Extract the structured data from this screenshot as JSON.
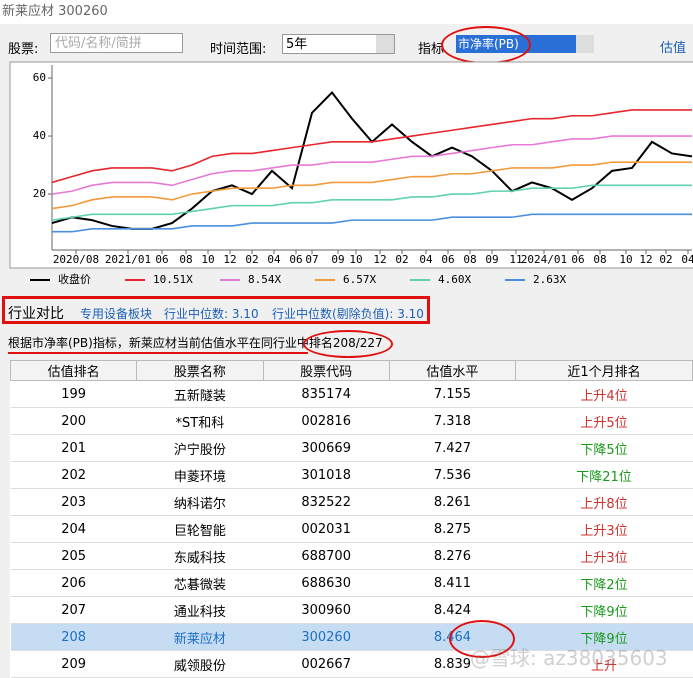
{
  "window_title": "新莱应材 300260",
  "controls": {
    "stock_label": "股票:",
    "stock_placeholder": "代码/名称/简拼",
    "range_label": "时间范围:",
    "range_value": "5年",
    "indicator_label": "指标",
    "indicator_value": "市净率(PB)",
    "link": "估值"
  },
  "chart_data": {
    "type": "line",
    "x": [
      0,
      1,
      2,
      3,
      4,
      5,
      6,
      7,
      8,
      9,
      10,
      11,
      12,
      13,
      14,
      15,
      16,
      17,
      18,
      19,
      20,
      21,
      22,
      23,
      24,
      25,
      26,
      27,
      28,
      29,
      30,
      31,
      32
    ],
    "xlim": [
      0,
      32
    ],
    "xticks": [
      {
        "value": 1.2,
        "label": "2020/08"
      },
      {
        "value": 3.8,
        "label": "2021/01"
      },
      {
        "value": 5.5,
        "label": "06"
      },
      {
        "value": 6.7,
        "label": "08"
      },
      {
        "value": 7.8,
        "label": "10"
      },
      {
        "value": 8.9,
        "label": "12"
      },
      {
        "value": 10,
        "label": "02"
      },
      {
        "value": 11.1,
        "label": "04"
      },
      {
        "value": 12.2,
        "label": "06"
      },
      {
        "value": 13,
        "label": "07"
      },
      {
        "value": 14.3,
        "label": "09"
      },
      {
        "value": 15.2,
        "label": "10"
      },
      {
        "value": 16.4,
        "label": "12"
      },
      {
        "value": 17.5,
        "label": "02"
      },
      {
        "value": 18.7,
        "label": "04"
      },
      {
        "value": 19.8,
        "label": "06"
      },
      {
        "value": 20.9,
        "label": "08"
      },
      {
        "value": 22,
        "label": "09"
      },
      {
        "value": 23.2,
        "label": "11"
      },
      {
        "value": 24.6,
        "label": "2024/01"
      },
      {
        "value": 26.3,
        "label": "06"
      },
      {
        "value": 27.4,
        "label": "08"
      },
      {
        "value": 28.7,
        "label": "10"
      },
      {
        "value": 29.7,
        "label": "12"
      },
      {
        "value": 30.7,
        "label": "02"
      },
      {
        "value": 31.8,
        "label": "04"
      }
    ],
    "ylim": [
      0.7,
      64.5
    ],
    "yticks": [
      20,
      40,
      60
    ],
    "series": [
      {
        "name": "收盘价",
        "color": "#000000",
        "values": [
          10,
          12,
          11,
          9,
          8,
          8,
          10,
          15,
          21,
          23,
          20,
          28,
          22,
          48,
          55,
          46,
          38,
          44,
          38,
          33,
          36,
          33,
          28,
          21,
          24,
          22,
          18,
          22,
          28,
          29,
          38,
          34,
          33
        ]
      },
      {
        "name": "10.51X",
        "color": "#e8262b",
        "values": [
          24,
          26,
          28,
          29,
          29,
          29,
          28,
          30,
          33,
          34,
          34,
          35,
          36,
          37,
          38,
          38,
          38,
          39,
          40,
          41,
          42,
          43,
          44,
          45,
          46,
          46,
          47,
          47,
          48,
          49,
          49,
          49,
          49
        ]
      },
      {
        "name": "8.54X",
        "color": "#e67ad6",
        "values": [
          20,
          21,
          23,
          24,
          24,
          24,
          23,
          25,
          27,
          28,
          28,
          29,
          30,
          30,
          31,
          31,
          31,
          32,
          33,
          33,
          34,
          35,
          36,
          37,
          37,
          38,
          39,
          39,
          40,
          40,
          40,
          40,
          40
        ]
      },
      {
        "name": "6.57X",
        "color": "#f39a3c",
        "values": [
          15,
          16,
          18,
          19,
          19,
          19,
          18,
          20,
          21,
          22,
          22,
          22,
          23,
          23,
          24,
          24,
          24,
          25,
          26,
          26,
          27,
          27,
          28,
          29,
          29,
          29,
          30,
          30,
          31,
          31,
          31,
          31,
          31
        ]
      },
      {
        "name": "4.60X",
        "color": "#5fd0b0",
        "values": [
          11,
          12,
          13,
          13,
          13,
          13,
          13,
          14,
          15,
          16,
          16,
          16,
          17,
          17,
          18,
          18,
          18,
          18,
          19,
          19,
          20,
          20,
          21,
          21,
          22,
          22,
          22,
          23,
          23,
          23,
          23,
          23,
          23
        ]
      },
      {
        "name": "2.63X",
        "color": "#4a8ee0",
        "values": [
          7,
          7,
          8,
          8,
          8,
          8,
          8,
          9,
          9,
          9,
          10,
          10,
          10,
          10,
          10,
          11,
          11,
          11,
          11,
          11,
          12,
          12,
          12,
          12,
          13,
          13,
          13,
          13,
          13,
          13,
          13,
          13,
          13
        ]
      }
    ]
  },
  "industry": {
    "title": "行业对比",
    "sector": "专用设备板块",
    "median": "行业中位数: 3.10",
    "median_ex": "行业中位数(剔除负值): 3.10"
  },
  "summary": {
    "text": "根据市净率(PB)指标，新莱应材当前估值水平在同行业中排",
    "rank": "名208/227"
  },
  "table": {
    "headers": [
      "估值排名",
      "股票名称",
      "股票代码",
      "估值水平",
      "近1个月排名"
    ],
    "rows": [
      [
        199,
        "五新隧装",
        "835174",
        7.155,
        "上升4位"
      ],
      [
        200,
        "*ST和科",
        "002816",
        7.318,
        "上升5位"
      ],
      [
        201,
        "沪宁股份",
        "300669",
        7.427,
        "下降5位"
      ],
      [
        202,
        "申菱环境",
        "301018",
        7.536,
        "下降21位"
      ],
      [
        203,
        "纳科诺尔",
        "832522",
        8.261,
        "上升8位"
      ],
      [
        204,
        "巨轮智能",
        "002031",
        8.275,
        "上升3位"
      ],
      [
        205,
        "东威科技",
        "688700",
        8.276,
        "上升3位"
      ],
      [
        206,
        "芯碁微装",
        "688630",
        8.411,
        "下降2位"
      ],
      [
        207,
        "通业科技",
        "300960",
        8.424,
        "下降9位"
      ],
      [
        208,
        "新莱应材",
        "300260",
        8.464,
        "下降9位"
      ],
      [
        209,
        "威领股份",
        "002667",
        8.839,
        "上升"
      ]
    ],
    "change_colors": [
      "#d0312d",
      "#d0312d",
      "#1a9a1a",
      "#1a9a1a",
      "#d0312d",
      "#d0312d",
      "#d0312d",
      "#1a9a1a",
      "#1a9a1a",
      "#1a9a1a",
      "#d0312d"
    ],
    "selected_row": 9
  },
  "watermark": "@雪球: az38035603"
}
